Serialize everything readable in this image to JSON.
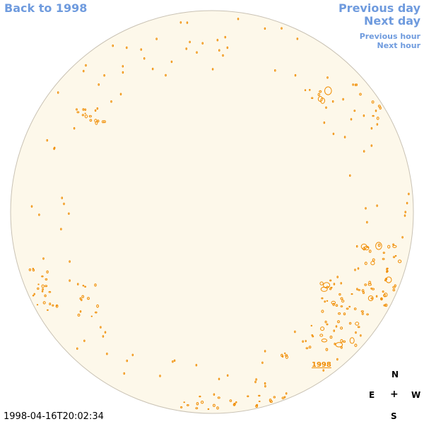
{
  "nav": {
    "back_label": "Back to 1998",
    "prev_day_label": "Previous day",
    "next_day_label": "Next day",
    "prev_hour_label": "Previous hour",
    "next_hour_label": "Next hour"
  },
  "timestamp": "1998-04-16T20:02:34",
  "year_label": "1998",
  "compass": {
    "n": "N",
    "e": "E",
    "w": "W",
    "s": "S",
    "center": "+"
  },
  "colors": {
    "link": "#6f9bde",
    "disk_fill": "#fdf8ea",
    "disk_edge": "#c9c2b4",
    "feature": "#f08c00"
  }
}
